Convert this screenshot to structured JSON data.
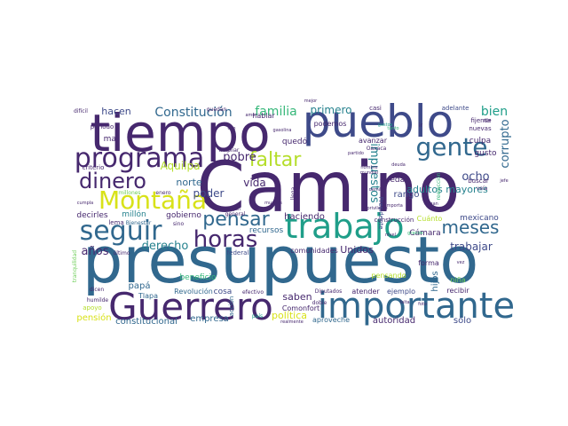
{
  "palette": {
    "background": "#ffffff",
    "dark_purple": "#46286e",
    "indigo": "#3e4a89",
    "slate_blue": "#31688e",
    "teal": "#26828e",
    "green_teal": "#1f9e89",
    "green": "#35b779",
    "light_green": "#6ece58",
    "yellow_green": "#b5de2b",
    "yellow": "#d8e219"
  },
  "words": [
    "Camino",
    "presupuesto",
    "tiempo",
    "pueblo",
    "Guerrero",
    "importante",
    "trabajo",
    "programa",
    "gente",
    "seguir",
    "Montaña",
    "dinero",
    "horas",
    "faltar",
    "pensar",
    "meses",
    "Constitución",
    "familia",
    "primero",
    "bien",
    "corrupto",
    "impuestos",
    "ocho",
    "adultos mayores",
    "Aquilpa",
    "pobre",
    "vida",
    "norte",
    "poder",
    "derecho",
    "años",
    "trabajar",
    "haciendo",
    "Unidos",
    "comunidades",
    "recursos",
    "papá",
    "gobierno",
    "decirles",
    "millón",
    "beneficio",
    "Revolución",
    "cosa",
    "saben",
    "empresa",
    "constitucional",
    "pensión",
    "política",
    "autoridad",
    "sólo",
    "aproveche",
    "Comonfort",
    "atender",
    "ejemplo",
    "recibir",
    "forma",
    "hijos",
    "niña",
    "Cámara",
    "mexicano",
    "construcción",
    "Cuánto",
    "queda",
    "rango",
    "gusto",
    "buscar",
    "culpa",
    "avanzar",
    "quedó",
    "podemos",
    "hablar",
    "hacen",
    "mal",
    "periodo",
    "criterio",
    "millones",
    "enero",
    "lema",
    "Bienestar",
    "sino",
    "ampliar",
    "dejan",
    "general",
    "muchas",
    "federal",
    "acción",
    "Diputados",
    "pensando",
    "fijense",
    "nuevas",
    "adelante",
    "casi",
    "dije",
    "apoyo",
    "tranquilidad",
    "humilde",
    "Tlapa",
    "último",
    "mejor",
    "quedan",
    "difícil",
    "dicen",
    "país",
    "efectivo",
    "llega",
    "nombre",
    "mundial",
    "reelección",
    "Oaxaca",
    "partido",
    "importa",
    "deuda",
    "demás",
    "privilegio",
    "gasolina",
    "nivel",
    "hagan",
    "veía",
    "cumpla",
    "jefe",
    "amor",
    "dijo",
    "grande",
    "falta",
    "ir",
    "realmente",
    "tanto",
    "Presidente",
    "gastos",
    "doble",
    "foto",
    "vez"
  ]
}
